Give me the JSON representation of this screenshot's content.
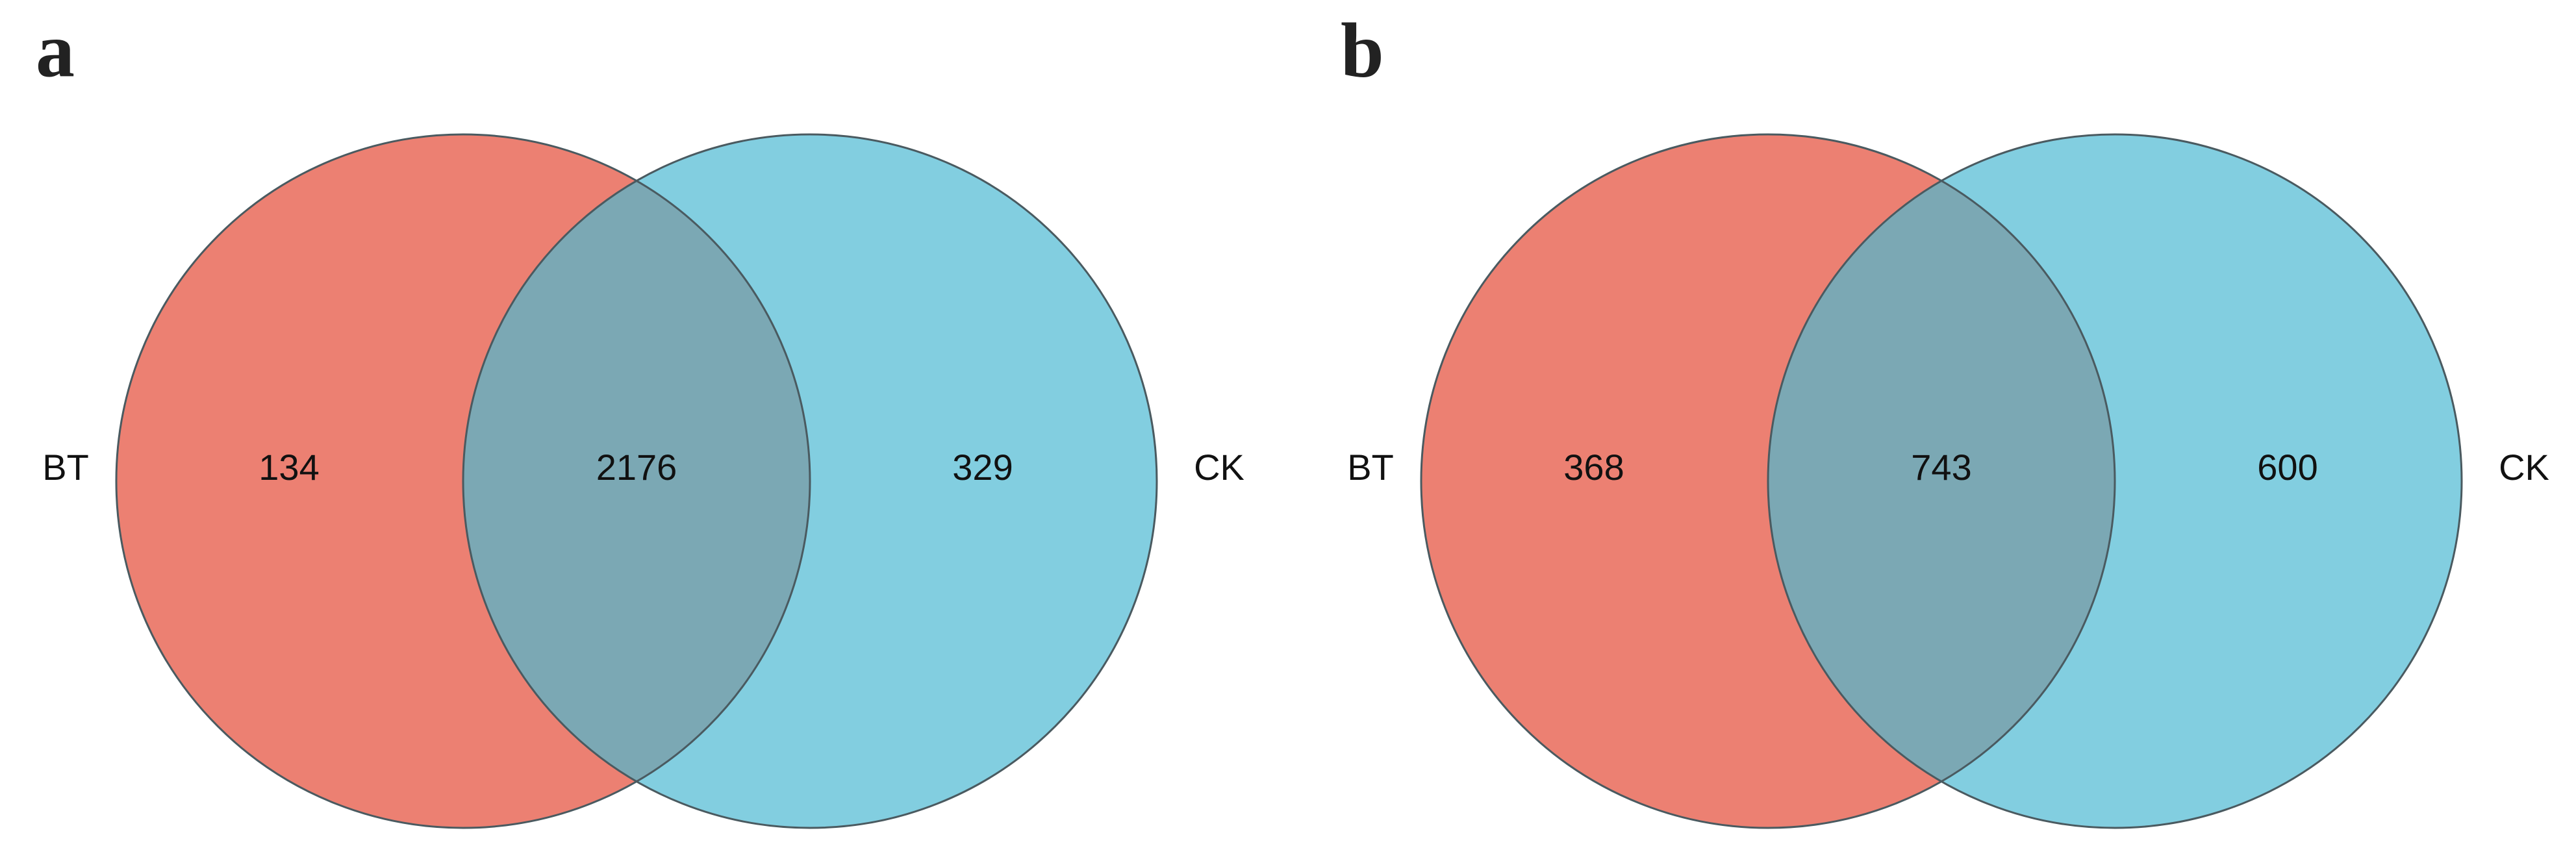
{
  "chart_data": [
    {
      "type": "venn",
      "title": "a",
      "sets": [
        "BT",
        "CK"
      ],
      "values": [
        134,
        2176,
        329
      ],
      "colors": [
        "#ec8072",
        "#82cee0"
      ],
      "overlap_color": "#7ba8b4"
    },
    {
      "type": "venn",
      "title": "b",
      "sets": [
        "BT",
        "CK"
      ],
      "values": [
        368,
        743,
        600
      ],
      "colors": [
        "#ec8072",
        "#82cee0"
      ],
      "overlap_color": "#7ba8b4"
    }
  ]
}
